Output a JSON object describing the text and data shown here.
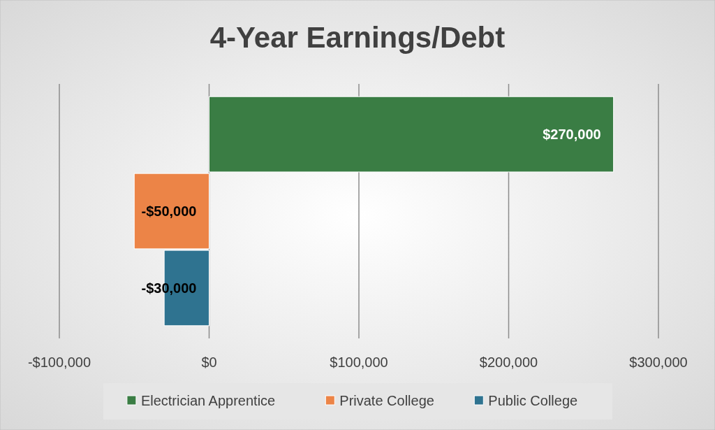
{
  "chart_data": {
    "type": "bar",
    "title": "4-Year Earnings/Debt",
    "orientation": "horizontal",
    "categories": [
      null
    ],
    "series": [
      {
        "name": "Electrician Apprentice",
        "color": "#3a7d44",
        "values": [
          270000
        ],
        "value_labels": [
          "$270,000"
        ]
      },
      {
        "name": "Private College",
        "color": "#ec8447",
        "values": [
          -50000
        ],
        "value_labels": [
          "-$50,000"
        ]
      },
      {
        "name": "Public College",
        "color": "#2f7390",
        "values": [
          -30000
        ],
        "value_labels": [
          "-$30,000"
        ]
      }
    ],
    "xlim": [
      -100000,
      300000
    ],
    "xticks": [
      {
        "value": -100000,
        "label": "-$100,000"
      },
      {
        "value": 0,
        "label": "$0"
      },
      {
        "value": 100000,
        "label": "$100,000"
      },
      {
        "value": 200000,
        "label": "$200,000"
      },
      {
        "value": 300000,
        "label": "$300,000"
      }
    ],
    "grid": "x",
    "legend": "bottom"
  }
}
